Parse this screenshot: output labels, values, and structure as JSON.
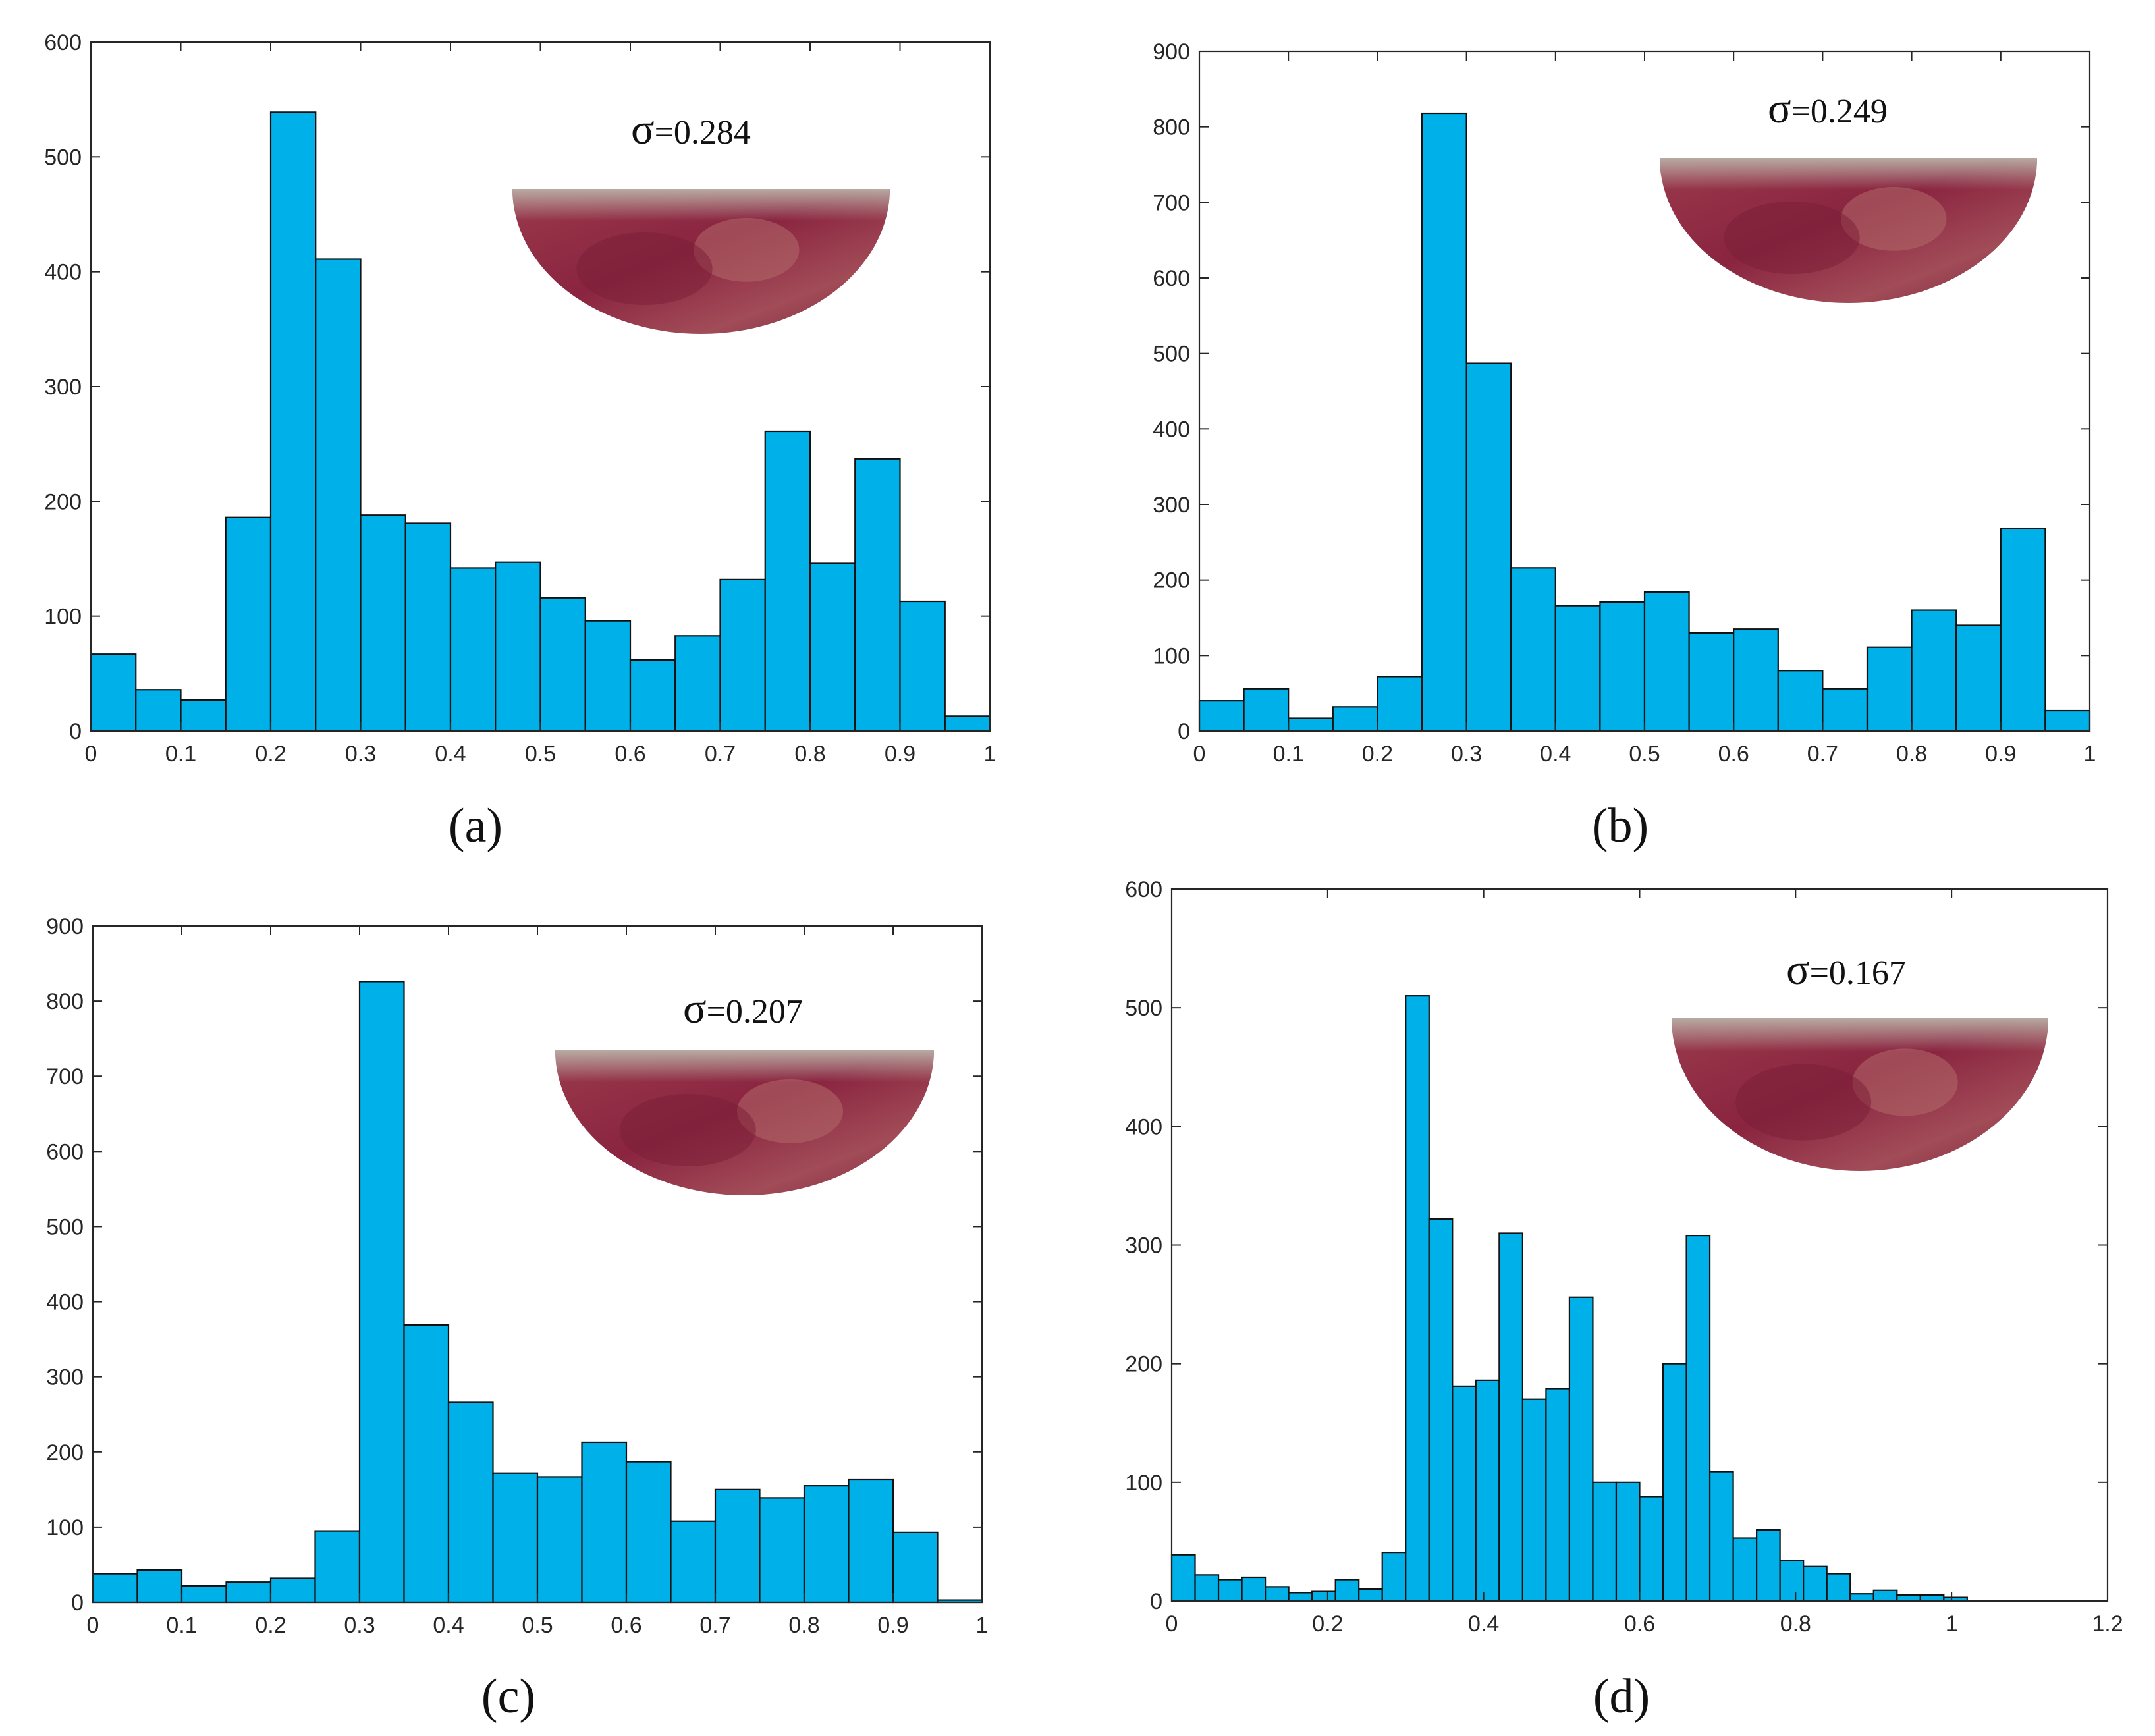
{
  "colors": {
    "bar_fill": "#00b0e8",
    "bar_stroke": "#111111",
    "axis": "#262626",
    "inset_base": "#8c2a3e",
    "inset_dark": "#7a1e36",
    "inset_light": "#b26a6a",
    "inset_top": "#a89b95"
  },
  "chart_data": [
    {
      "id": "a",
      "type": "bar",
      "panel_label": "(a)",
      "sigma_symbol": "σ",
      "sigma_value": "=0.284",
      "inset_icon": "lens-image",
      "xlim": [
        0,
        1
      ],
      "ylim": [
        0,
        600
      ],
      "xticks": [
        0,
        0.1,
        0.2,
        0.3,
        0.4,
        0.5,
        0.6,
        0.7,
        0.8,
        0.9,
        1
      ],
      "xtick_labels": [
        "0",
        "0.1",
        "0.2",
        "0.3",
        "0.4",
        "0.5",
        "0.6",
        "0.7",
        "0.8",
        "0.9",
        "1"
      ],
      "yticks": [
        0,
        100,
        200,
        300,
        400,
        500,
        600
      ],
      "ytick_labels": [
        "0",
        "100",
        "200",
        "300",
        "400",
        "500",
        "600"
      ],
      "bin_start": 0,
      "bin_width": 0.05,
      "values": [
        67,
        36,
        27,
        186,
        539,
        411,
        188,
        181,
        142,
        147,
        116,
        96,
        62,
        83,
        132,
        261,
        146,
        237,
        113,
        13
      ]
    },
    {
      "id": "b",
      "type": "bar",
      "panel_label": "(b)",
      "sigma_symbol": "σ",
      "sigma_value": "=0.249",
      "inset_icon": "lens-image",
      "xlim": [
        0,
        1
      ],
      "ylim": [
        0,
        900
      ],
      "xticks": [
        0,
        0.1,
        0.2,
        0.3,
        0.4,
        0.5,
        0.6,
        0.7,
        0.8,
        0.9,
        1
      ],
      "xtick_labels": [
        "0",
        "0.1",
        "0.2",
        "0.3",
        "0.4",
        "0.5",
        "0.6",
        "0.7",
        "0.8",
        "0.9",
        "1"
      ],
      "yticks": [
        0,
        100,
        200,
        300,
        400,
        500,
        600,
        700,
        800,
        900
      ],
      "ytick_labels": [
        "0",
        "100",
        "200",
        "300",
        "400",
        "500",
        "600",
        "700",
        "800",
        "900"
      ],
      "bin_start": 0,
      "bin_width": 0.05,
      "values": [
        40,
        56,
        17,
        32,
        72,
        818,
        487,
        216,
        166,
        171,
        184,
        130,
        135,
        80,
        56,
        111,
        160,
        140,
        268,
        27
      ]
    },
    {
      "id": "c",
      "type": "bar",
      "panel_label": "(c)",
      "sigma_symbol": "σ",
      "sigma_value": "=0.207",
      "inset_icon": "lens-image",
      "xlim": [
        0,
        1
      ],
      "ylim": [
        0,
        900
      ],
      "xticks": [
        0,
        0.1,
        0.2,
        0.3,
        0.4,
        0.5,
        0.6,
        0.7,
        0.8,
        0.9,
        1
      ],
      "xtick_labels": [
        "0",
        "0.1",
        "0.2",
        "0.3",
        "0.4",
        "0.5",
        "0.6",
        "0.7",
        "0.8",
        "0.9",
        "1"
      ],
      "yticks": [
        0,
        100,
        200,
        300,
        400,
        500,
        600,
        700,
        800,
        900
      ],
      "ytick_labels": [
        "0",
        "100",
        "200",
        "300",
        "400",
        "500",
        "600",
        "700",
        "800",
        "900"
      ],
      "bin_start": 0,
      "bin_width": 0.05,
      "values": [
        38,
        43,
        22,
        27,
        32,
        95,
        826,
        369,
        266,
        172,
        167,
        213,
        187,
        108,
        150,
        139,
        155,
        163,
        93,
        3
      ]
    },
    {
      "id": "d",
      "type": "bar",
      "panel_label": "(d)",
      "sigma_symbol": "σ",
      "sigma_value": "=0.167",
      "inset_icon": "lens-image",
      "xlim": [
        0,
        1.2
      ],
      "ylim": [
        0,
        600
      ],
      "xticks": [
        0,
        0.2,
        0.4,
        0.6,
        0.8,
        1,
        1.2
      ],
      "xtick_labels": [
        "0",
        "0.2",
        "0.4",
        "0.6",
        "0.8",
        "1",
        "1.2"
      ],
      "yticks": [
        0,
        100,
        200,
        300,
        400,
        500,
        600
      ],
      "ytick_labels": [
        "0",
        "100",
        "200",
        "300",
        "400",
        "500",
        "600"
      ],
      "bin_start": 0,
      "bin_width": 0.03,
      "values": [
        39,
        22,
        18,
        20,
        12,
        7,
        8,
        18,
        10,
        41,
        510,
        322,
        181,
        186,
        310,
        170,
        179,
        256,
        100,
        100,
        88,
        200,
        308,
        109,
        53,
        60,
        34,
        29,
        23,
        6,
        9,
        5,
        5,
        3
      ]
    }
  ]
}
